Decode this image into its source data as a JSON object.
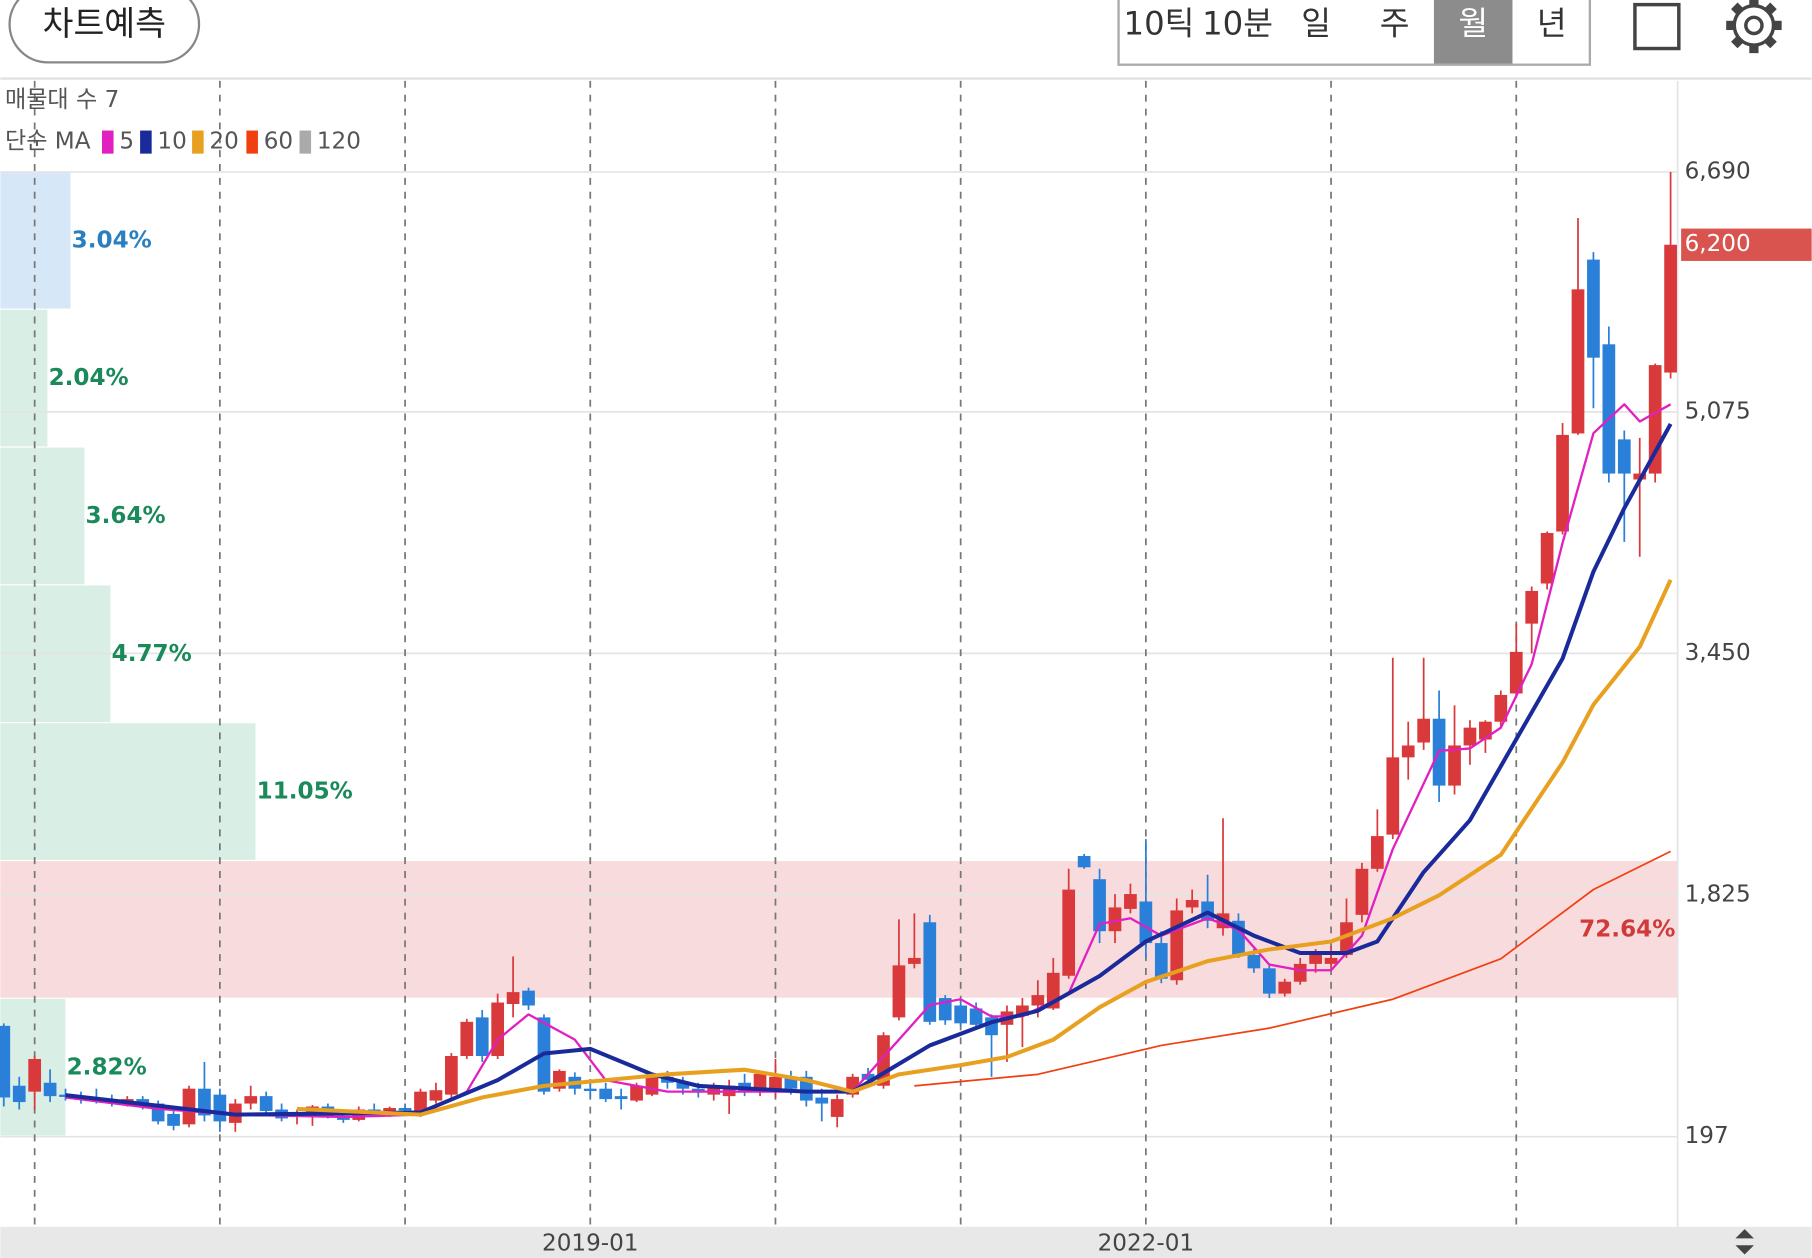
{
  "toolbar": {
    "button": "차트예측",
    "periods": [
      "10틱",
      "10분",
      "일",
      "주",
      "월",
      "년"
    ],
    "selected_index": 4
  },
  "chart_data": {
    "type": "candlestick",
    "volume_profile_label": "매물대 수 7",
    "ma_label": "단순 MA",
    "categories": [
      null,
      null,
      null,
      null,
      null,
      null,
      null,
      null,
      null,
      null,
      null,
      null,
      null,
      null,
      null,
      null,
      null,
      null,
      null,
      null,
      null,
      null,
      null,
      null,
      null,
      null,
      null,
      null,
      null,
      null,
      null,
      null,
      null,
      null,
      null,
      null,
      null,
      null,
      "2019-01",
      null,
      null,
      null,
      null,
      null,
      null,
      null,
      null,
      null,
      null,
      null,
      null,
      null,
      null,
      null,
      null,
      null,
      null,
      null,
      null,
      null,
      null,
      null,
      null,
      null,
      null,
      null,
      null,
      null,
      null,
      null,
      null,
      null,
      null,
      null,
      "2022-01",
      null,
      null,
      null,
      null,
      null,
      null,
      null,
      null,
      null,
      null,
      null,
      null,
      null,
      null,
      null,
      null,
      null,
      null,
      null,
      null,
      null,
      null,
      null,
      null,
      null,
      null,
      null,
      null,
      null,
      null,
      null,
      null,
      null,
      null
    ],
    "candles": [
      [
        943,
        960,
        400,
        461
      ],
      [
        540,
        600,
        380,
        430
      ],
      [
        500,
        740,
        380,
        720
      ],
      [
        560,
        650,
        430,
        470
      ],
      [
        480,
        520,
        440,
        470
      ],
      [
        470,
        500,
        420,
        450
      ],
      [
        460,
        520,
        420,
        440
      ],
      [
        440,
        480,
        400,
        430
      ],
      [
        420,
        470,
        400,
        450
      ],
      [
        450,
        470,
        380,
        420
      ],
      [
        420,
        440,
        280,
        300
      ],
      [
        350,
        380,
        240,
        270
      ],
      [
        280,
        540,
        260,
        520
      ],
      [
        520,
        700,
        300,
        340
      ],
      [
        480,
        520,
        230,
        300
      ],
      [
        290,
        450,
        230,
        420
      ],
      [
        420,
        540,
        380,
        470
      ],
      [
        470,
        500,
        340,
        370
      ],
      [
        380,
        420,
        300,
        320
      ],
      [
        330,
        380,
        280,
        350
      ],
      [
        330,
        410,
        270,
        400
      ],
      [
        400,
        420,
        320,
        340
      ],
      [
        340,
        380,
        290,
        310
      ],
      [
        310,
        400,
        300,
        380
      ],
      [
        380,
        420,
        330,
        360
      ],
      [
        360,
        400,
        330,
        390
      ],
      [
        390,
        420,
        360,
        380
      ],
      [
        370,
        520,
        330,
        500
      ],
      [
        440,
        560,
        420,
        510
      ],
      [
        480,
        760,
        460,
        740
      ],
      [
        740,
        990,
        720,
        970
      ],
      [
        1000,
        1050,
        700,
        740
      ],
      [
        740,
        1160,
        720,
        1100
      ],
      [
        1090,
        1410,
        1000,
        1170
      ],
      [
        1180,
        1200,
        1050,
        1080
      ],
      [
        1000,
        1020,
        480,
        500
      ],
      [
        520,
        650,
        500,
        640
      ],
      [
        600,
        630,
        480,
        520
      ],
      [
        520,
        560,
        460,
        510
      ],
      [
        520,
        560,
        430,
        450
      ],
      [
        470,
        520,
        380,
        450
      ],
      [
        440,
        560,
        430,
        540
      ],
      [
        480,
        620,
        470,
        600
      ],
      [
        600,
        640,
        520,
        560
      ],
      [
        560,
        600,
        480,
        520
      ],
      [
        520,
        560,
        460,
        500
      ],
      [
        480,
        560,
        440,
        530
      ],
      [
        470,
        580,
        350,
        540
      ],
      [
        560,
        620,
        470,
        500
      ],
      [
        500,
        640,
        470,
        620
      ],
      [
        520,
        720,
        460,
        600
      ],
      [
        600,
        640,
        480,
        520
      ],
      [
        600,
        640,
        400,
        440
      ],
      [
        460,
        520,
        300,
        420
      ],
      [
        330,
        480,
        260,
        450
      ],
      [
        480,
        620,
        460,
        600
      ],
      [
        620,
        660,
        560,
        580
      ],
      [
        540,
        900,
        520,
        880
      ],
      [
        1000,
        1660,
        980,
        1350
      ],
      [
        1360,
        1700,
        1330,
        1400
      ],
      [
        1640,
        1690,
        950,
        970
      ],
      [
        1130,
        1150,
        950,
        980
      ],
      [
        1080,
        1120,
        940,
        960
      ],
      [
        1060,
        1100,
        930,
        950
      ],
      [
        1000,
        1020,
        600,
        880
      ],
      [
        950,
        1080,
        700,
        1040
      ],
      [
        1010,
        1130,
        800,
        1080
      ],
      [
        1080,
        1250,
        1000,
        1150
      ],
      [
        1060,
        1400,
        1050,
        1300
      ],
      [
        1280,
        2000,
        1260,
        1860
      ],
      [
        2086,
        2100,
        2000,
        2010
      ],
      [
        1930,
        2000,
        1500,
        1580
      ],
      [
        1580,
        1830,
        1500,
        1740
      ],
      [
        1730,
        1900,
        1700,
        1830
      ],
      [
        1780,
        2200,
        1400,
        1500
      ],
      [
        1500,
        1580,
        1230,
        1260
      ],
      [
        1250,
        1800,
        1220,
        1720
      ],
      [
        1740,
        1860,
        1700,
        1790
      ],
      [
        1780,
        1960,
        1600,
        1650
      ],
      [
        1600,
        2340,
        1550,
        1700
      ],
      [
        1650,
        1700,
        1400,
        1420
      ],
      [
        1420,
        1460,
        1300,
        1330
      ],
      [
        1330,
        1350,
        1130,
        1160
      ],
      [
        1160,
        1260,
        1140,
        1240
      ],
      [
        1240,
        1400,
        1220,
        1360
      ],
      [
        1360,
        1460,
        1300,
        1420
      ],
      [
        1360,
        1480,
        1330,
        1400
      ],
      [
        1420,
        1800,
        1400,
        1640
      ],
      [
        1690,
        2040,
        1640,
        2000
      ],
      [
        2000,
        2400,
        1980,
        2220
      ],
      [
        2230,
        3420,
        2200,
        2750
      ],
      [
        2750,
        2990,
        2600,
        2830
      ],
      [
        2850,
        3420,
        2800,
        3010
      ],
      [
        3010,
        3200,
        2450,
        2560
      ],
      [
        2560,
        3100,
        2500,
        2830
      ],
      [
        2830,
        3000,
        2700,
        2950
      ],
      [
        2870,
        3000,
        2780,
        2990
      ],
      [
        2990,
        3200,
        2950,
        3170
      ],
      [
        3180,
        3650,
        3150,
        3460
      ],
      [
        3650,
        3900,
        3450,
        3870
      ],
      [
        3920,
        4270,
        3880,
        4260
      ],
      [
        4270,
        5000,
        4250,
        4920
      ],
      [
        4930,
        6380,
        4920,
        5900
      ],
      [
        6100,
        6150,
        5100,
        5440
      ],
      [
        5530,
        5650,
        4600,
        4660
      ],
      [
        4890,
        4950,
        4200,
        4660
      ],
      [
        4620,
        4900,
        4100,
        4660
      ],
      [
        4660,
        5400,
        4600,
        5390
      ],
      [
        5340,
        6690,
        5300,
        6200
      ]
    ],
    "up_color": "#d9393a",
    "down_color": "#2a7fd8",
    "ma": [
      {
        "name": "5",
        "color": "#e020c0",
        "width": 2,
        "x": [
          4,
          10,
          15,
          22,
          27,
          30,
          32,
          34,
          37,
          39,
          43,
          51,
          55,
          57,
          60,
          62,
          64,
          66,
          69,
          71,
          73,
          75,
          78,
          80,
          82,
          84,
          86,
          88,
          90,
          93,
          95,
          97,
          99,
          101,
          103,
          105,
          106,
          108
        ],
        "values": [
          461,
          384,
          345,
          330,
          345,
          500,
          850,
          1020,
          850,
          578,
          500,
          500,
          500,
          733,
          1083,
          1122,
          1006,
          1006,
          1161,
          1628,
          1667,
          1550,
          1667,
          1589,
          1355,
          1317,
          1317,
          1550,
          2133,
          2794,
          2810,
          2949,
          3377,
          4194,
          4932,
          5126,
          5010,
          5126
        ]
      },
      {
        "name": "10",
        "color": "#1a2a9a",
        "width": 3.5,
        "x": [
          4,
          15,
          27,
          32,
          35,
          38,
          42,
          45,
          52,
          55,
          60,
          64,
          67,
          71,
          74,
          78,
          81,
          84,
          87,
          89,
          92,
          95,
          98,
          101,
          103,
          105,
          108
        ],
        "values": [
          477,
          345,
          360,
          578,
          757,
          788,
          617,
          539,
          500,
          500,
          811,
          967,
          1044,
          1278,
          1511,
          1705,
          1550,
          1433,
          1433,
          1511,
          1977,
          2327,
          2872,
          3416,
          4000,
          4427,
          4994
        ]
      },
      {
        "name": "20",
        "color": "#e8a020",
        "width": 3.5,
        "x": [
          19,
          27,
          31,
          35,
          39,
          43,
          48,
          52,
          55,
          58,
          62,
          65,
          68,
          71,
          74,
          78,
          82,
          86,
          90,
          93,
          97,
          101,
          103,
          106,
          108
        ],
        "values": [
          384,
          345,
          461,
          539,
          578,
          617,
          648,
          578,
          500,
          617,
          679,
          733,
          850,
          1068,
          1239,
          1379,
          1457,
          1511,
          1667,
          1822,
          2094,
          2716,
          3105,
          3494,
          3945
        ]
      },
      {
        "name": "60",
        "color": "#f04010",
        "width": 1.5,
        "x": [
          59,
          67,
          75,
          82,
          90,
          97,
          103,
          108
        ],
        "values": [
          539,
          617,
          811,
          928,
          1122,
          1394,
          1861,
          2117
        ]
      },
      {
        "name": "120",
        "color": "#aaaaaa",
        "width": 1.5,
        "x": [],
        "values": []
      }
    ],
    "profile": {
      "values": [
        2.82,
        72.64,
        11.05,
        4.77,
        3.64,
        2.04,
        3.04
      ],
      "value_labels": [
        "2.82%",
        "72.64%",
        "11.05%",
        "4.77%",
        "3.64%",
        "2.04%",
        "3.04%"
      ],
      "colors": [
        "#d9eee5",
        "#f8dcdd",
        "#d9eee5",
        "#d9eee5",
        "#d9eee5",
        "#d9eee5",
        "#d6e8f8"
      ],
      "label_colors": [
        "#1b8a5a",
        "#d03a3a",
        "#1b8a5a",
        "#1b8a5a",
        "#1b8a5a",
        "#1b8a5a",
        "#2a7fc0"
      ]
    },
    "ylim": [
      -394,
      7303
    ],
    "yticks": [
      197,
      {
        "value": 1825,
        "label": "1,825"
      },
      {
        "value": 3450,
        "label": "3,450"
      },
      {
        "value": 5075,
        "label": "5,075"
      },
      {
        "value": 6690,
        "label": "6,690"
      }
    ],
    "xgrid": [
      2,
      14,
      26,
      38,
      50,
      62,
      74,
      86,
      98
    ],
    "last_price": {
      "value": 6200,
      "label": "6,200"
    },
    "grid": true
  }
}
